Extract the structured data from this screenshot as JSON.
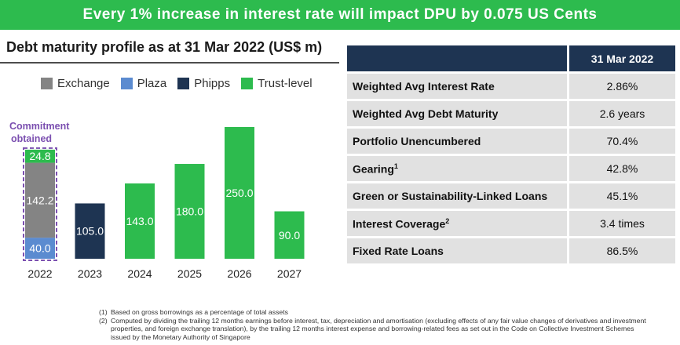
{
  "banner": "Every 1% increase in interest rate will impact DPU by 0.075 US Cents",
  "chart_data": {
    "type": "bar",
    "stacked": true,
    "title": "Debt maturity profile as at 31 Mar 2022 (US$ m)",
    "xlabel": "",
    "ylabel": "",
    "categories": [
      "2022",
      "2023",
      "2024",
      "2025",
      "2026",
      "2027"
    ],
    "series": [
      {
        "name": "Exchange",
        "color": "#848484",
        "values": [
          142.2,
          0,
          0,
          0,
          0,
          0
        ]
      },
      {
        "name": "Plaza",
        "color": "#5b8bd0",
        "values": [
          40.0,
          0,
          0,
          0,
          0,
          0
        ]
      },
      {
        "name": "Phipps",
        "color": "#1e3452",
        "values": [
          0,
          105.0,
          0,
          0,
          0,
          0
        ]
      },
      {
        "name": "Trust-level",
        "color": "#2dbb4e",
        "values": [
          24.8,
          0,
          143.0,
          180.0,
          250.0,
          90.0
        ]
      }
    ],
    "stack_order": [
      "Plaza",
      "Exchange",
      "Trust-level",
      "Phipps"
    ],
    "data_labels": [
      {
        "category": "2022",
        "series": "Plaza",
        "text": "40.0"
      },
      {
        "category": "2022",
        "series": "Exchange",
        "text": "142.2"
      },
      {
        "category": "2022",
        "series": "Trust-level",
        "text": "24.8"
      },
      {
        "category": "2023",
        "series": "Phipps",
        "text": "105.0"
      },
      {
        "category": "2024",
        "series": "Trust-level",
        "text": "143.0"
      },
      {
        "category": "2025",
        "series": "Trust-level",
        "text": "180.0"
      },
      {
        "category": "2026",
        "series": "Trust-level",
        "text": "250.0"
      },
      {
        "category": "2027",
        "series": "Trust-level",
        "text": "90.0"
      }
    ],
    "ylim": [
      0,
      250
    ],
    "grid": false,
    "legend": "top",
    "annotation": {
      "category": "2022",
      "text_lines": [
        "Commitment",
        "obtained"
      ],
      "color": "#7b4fb0",
      "style": "dashed box"
    }
  },
  "table": {
    "header": "31 Mar 2022",
    "rows": [
      {
        "metric": "Weighted Avg Interest Rate",
        "sup": "",
        "value": "2.86%"
      },
      {
        "metric": "Weighted Avg Debt Maturity",
        "sup": "",
        "value": "2.6 years"
      },
      {
        "metric": "Portfolio Unencumbered",
        "sup": "",
        "value": "70.4%"
      },
      {
        "metric": "Gearing",
        "sup": "1",
        "value": "42.8%"
      },
      {
        "metric": "Green or Sustainability-Linked Loans",
        "sup": "",
        "value": "45.1%"
      },
      {
        "metric": "Interest Coverage",
        "sup": "2",
        "value": "3.4 times"
      },
      {
        "metric": "Fixed Rate Loans",
        "sup": "",
        "value": "86.5%"
      }
    ]
  },
  "footnotes": [
    {
      "num": "(1)",
      "text": "Based on gross borrowings as a percentage of total assets"
    },
    {
      "num": "(2)",
      "text": "Computed by dividing the trailing 12 months earnings before interest, tax, depreciation and amortisation (excluding effects of any fair value changes of derivatives and investment properties, and foreign exchange translation), by the trailing 12 months interest expense and borrowing-related fees as set out in the Code on Collective Investment Schemes issued by the Monetary Authority of Singapore"
    }
  ]
}
